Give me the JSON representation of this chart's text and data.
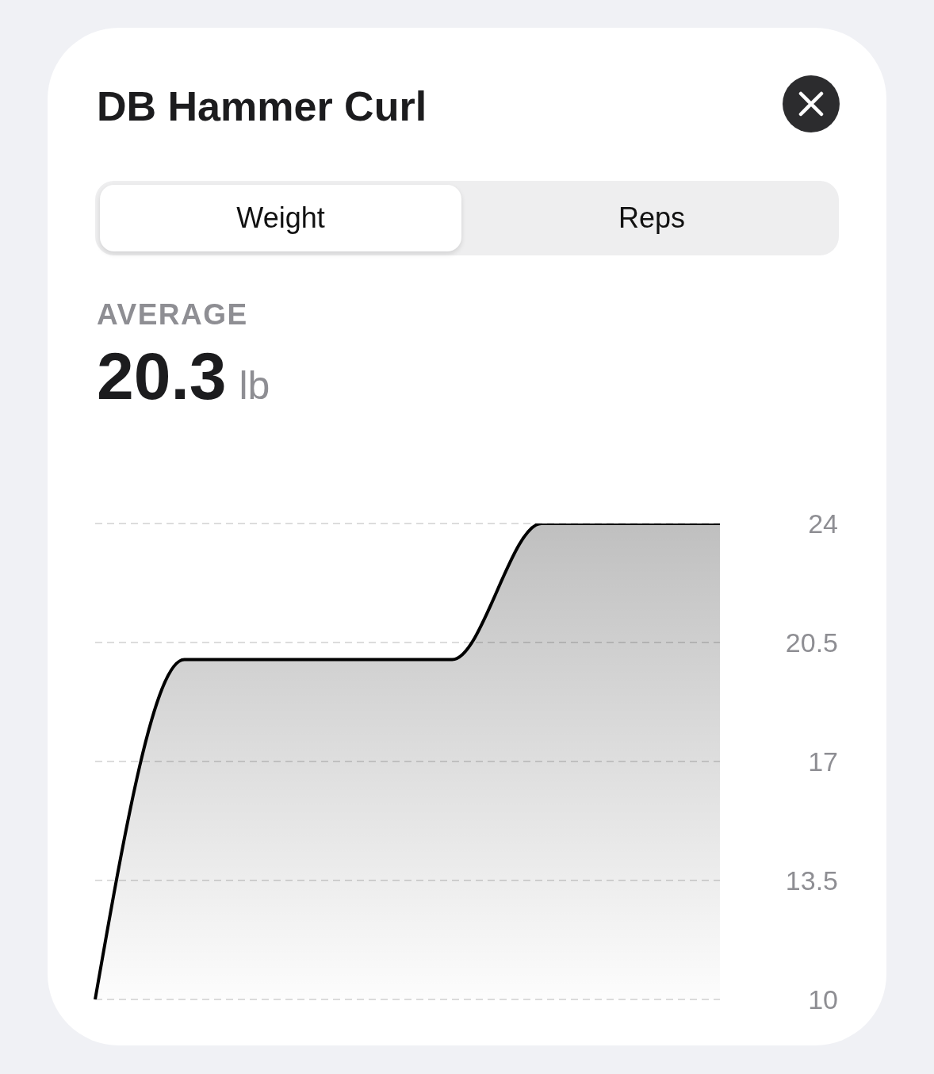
{
  "chart_data": {
    "type": "area",
    "title": "DB Hammer Curl",
    "annotations": [
      "Weight",
      "Reps",
      "AVERAGE",
      "20.3 lb"
    ],
    "categories": [
      null,
      null,
      null,
      null,
      null,
      null,
      null,
      null
    ],
    "series": [
      {
        "color": "#000000",
        "values": [
          10,
          20,
          20,
          20,
          20,
          24,
          24,
          24
        ]
      }
    ],
    "ylim": [
      10,
      24
    ],
    "yticks": [
      10,
      13.5,
      17,
      20.5,
      24
    ],
    "grid": "y",
    "tick_labels": "y",
    "line_style": "solid"
  }
}
